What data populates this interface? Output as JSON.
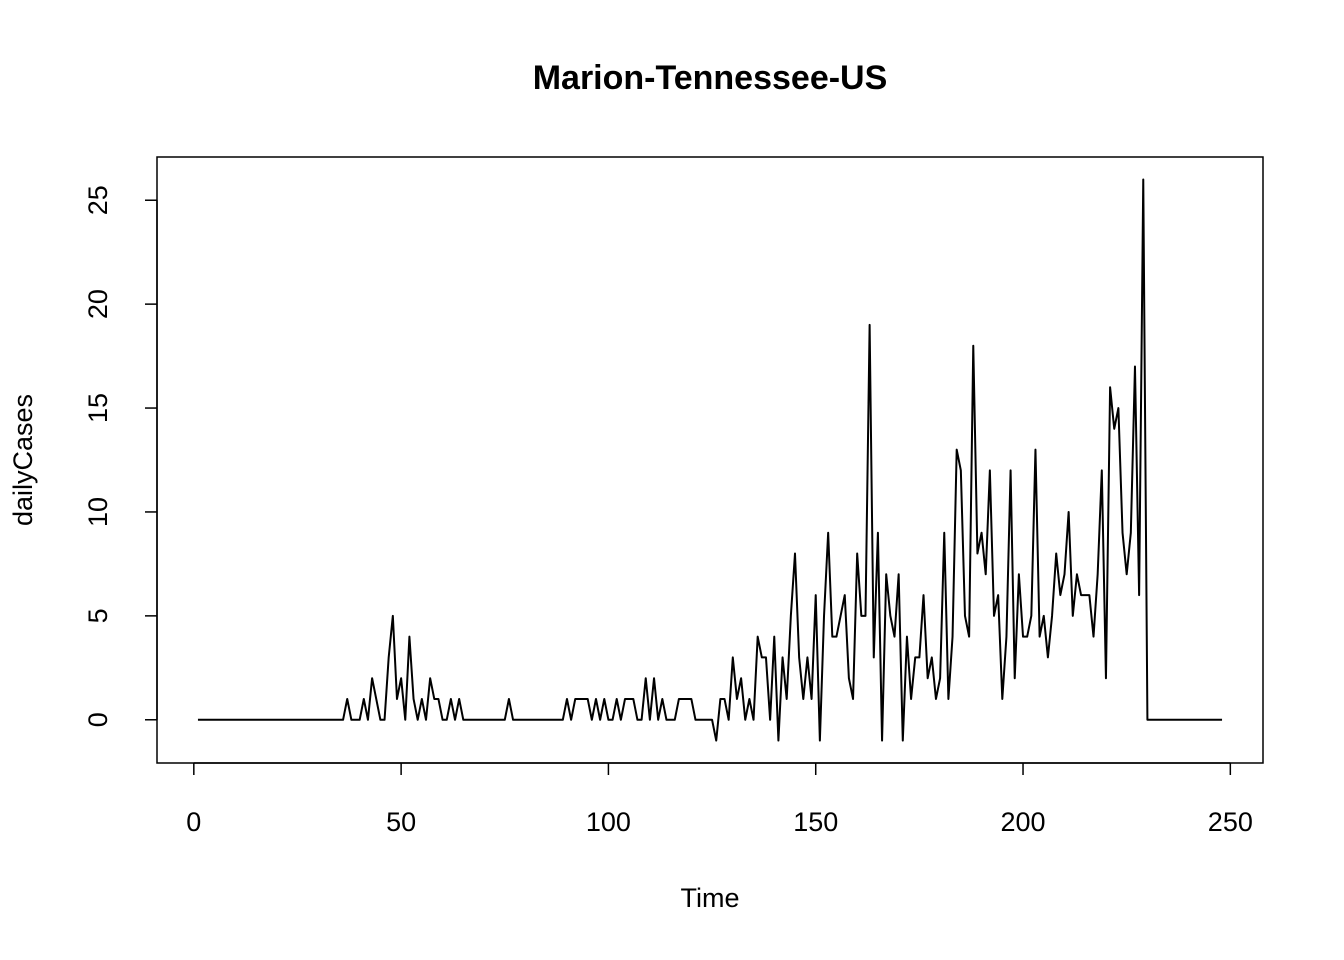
{
  "chart_data": {
    "type": "line",
    "title": "Marion-Tennessee-US",
    "xlabel": "Time",
    "ylabel": "dailyCases",
    "color": "#000000",
    "x": [
      1,
      2,
      3,
      4,
      5,
      6,
      7,
      8,
      9,
      10,
      11,
      12,
      13,
      14,
      15,
      16,
      17,
      18,
      19,
      20,
      21,
      22,
      23,
      24,
      25,
      26,
      27,
      28,
      29,
      30,
      31,
      32,
      33,
      34,
      35,
      36,
      37,
      38,
      39,
      40,
      41,
      42,
      43,
      44,
      45,
      46,
      47,
      48,
      49,
      50,
      51,
      52,
      53,
      54,
      55,
      56,
      57,
      58,
      59,
      60,
      61,
      62,
      63,
      64,
      65,
      66,
      67,
      68,
      69,
      70,
      71,
      72,
      73,
      74,
      75,
      76,
      77,
      78,
      79,
      80,
      81,
      82,
      83,
      84,
      85,
      86,
      87,
      88,
      89,
      90,
      91,
      92,
      93,
      94,
      95,
      96,
      97,
      98,
      99,
      100,
      101,
      102,
      103,
      104,
      105,
      106,
      107,
      108,
      109,
      110,
      111,
      112,
      113,
      114,
      115,
      116,
      117,
      118,
      119,
      120,
      121,
      122,
      123,
      124,
      125,
      126,
      127,
      128,
      129,
      130,
      131,
      132,
      133,
      134,
      135,
      136,
      137,
      138,
      139,
      140,
      141,
      142,
      143,
      144,
      145,
      146,
      147,
      148,
      149,
      150,
      151,
      152,
      153,
      154,
      155,
      156,
      157,
      158,
      159,
      160,
      161,
      162,
      163,
      164,
      165,
      166,
      167,
      168,
      169,
      170,
      171,
      172,
      173,
      174,
      175,
      176,
      177,
      178,
      179,
      180,
      181,
      182,
      183,
      184,
      185,
      186,
      187,
      188,
      189,
      190,
      191,
      192,
      193,
      194,
      195,
      196,
      197,
      198,
      199,
      200,
      201,
      202,
      203,
      204,
      205,
      206,
      207,
      208,
      209,
      210,
      211,
      212,
      213,
      214,
      215,
      216,
      217,
      218,
      219,
      220,
      221,
      222,
      223,
      224,
      225,
      226,
      227,
      228,
      229,
      230,
      231,
      232,
      233,
      234,
      235,
      236,
      237,
      238,
      239,
      240,
      241,
      242,
      243,
      244,
      245,
      246,
      247,
      248
    ],
    "values": [
      0,
      0,
      0,
      0,
      0,
      0,
      0,
      0,
      0,
      0,
      0,
      0,
      0,
      0,
      0,
      0,
      0,
      0,
      0,
      0,
      0,
      0,
      0,
      0,
      0,
      0,
      0,
      0,
      0,
      0,
      0,
      0,
      0,
      0,
      0,
      0,
      1,
      0,
      0,
      0,
      1,
      0,
      2,
      1,
      0,
      0,
      3,
      5,
      1,
      2,
      0,
      4,
      1,
      0,
      1,
      0,
      2,
      1,
      1,
      0,
      0,
      1,
      0,
      1,
      0,
      0,
      0,
      0,
      0,
      0,
      0,
      0,
      0,
      0,
      0,
      1,
      0,
      0,
      0,
      0,
      0,
      0,
      0,
      0,
      0,
      0,
      0,
      0,
      0,
      1,
      0,
      1,
      1,
      1,
      1,
      0,
      1,
      0,
      1,
      0,
      0,
      1,
      0,
      1,
      1,
      1,
      0,
      0,
      2,
      0,
      2,
      0,
      1,
      0,
      0,
      0,
      1,
      1,
      1,
      1,
      0,
      0,
      0,
      0,
      0,
      -1,
      1,
      1,
      0,
      3,
      1,
      2,
      0,
      1,
      0,
      4,
      3,
      3,
      0,
      4,
      -1,
      3,
      1,
      5,
      8,
      3,
      1,
      3,
      1,
      6,
      -1,
      5,
      9,
      4,
      4,
      5,
      6,
      2,
      1,
      8,
      5,
      5,
      19,
      3,
      9,
      -1,
      7,
      5,
      4,
      7,
      -1,
      4,
      1,
      3,
      3,
      6,
      2,
      3,
      1,
      2,
      9,
      1,
      4,
      13,
      12,
      5,
      4,
      18,
      8,
      9,
      7,
      12,
      5,
      6,
      1,
      4,
      12,
      2,
      7,
      4,
      4,
      5,
      13,
      4,
      5,
      3,
      5,
      8,
      6,
      7,
      10,
      5,
      7,
      6,
      6,
      6,
      4,
      7,
      12,
      2,
      16,
      14,
      15,
      9,
      7,
      9,
      17,
      6,
      26,
      0,
      0,
      0,
      0,
      0,
      0,
      0,
      0,
      0,
      0,
      0,
      0,
      0,
      0,
      0,
      0,
      0,
      0,
      0
    ],
    "xlim": [
      -8.88,
      257.88
    ],
    "ylim": [
      -2.08,
      27.08
    ],
    "xticks": [
      0,
      50,
      100,
      150,
      200,
      250
    ],
    "yticks": [
      0,
      5,
      10,
      15,
      20,
      25
    ]
  }
}
